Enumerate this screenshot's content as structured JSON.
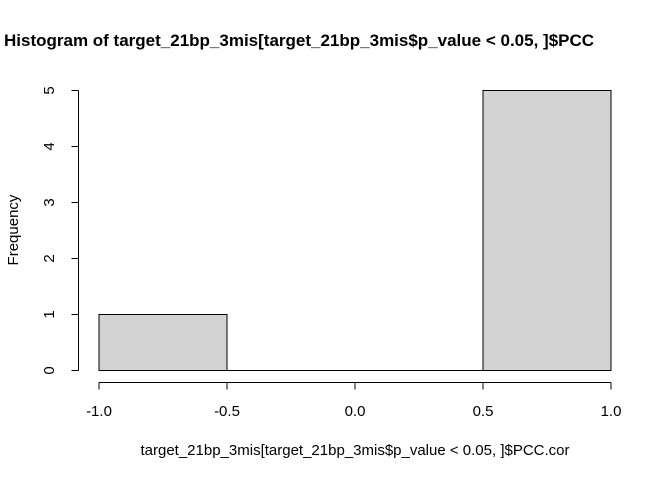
{
  "chart_data": {
    "type": "bar",
    "subtype": "histogram",
    "title": "Histogram of target_21bp_3mis[target_21bp_3mis$p_value < 0.05, ]$PCC",
    "xlabel": "target_21bp_3mis[target_21bp_3mis$p_value < 0.05, ]$PCC.cor",
    "ylabel": "Frequency",
    "bins": [
      {
        "from": -1.0,
        "to": -0.5,
        "count": 1
      },
      {
        "from": -0.5,
        "to": 0.0,
        "count": 0
      },
      {
        "from": 0.0,
        "to": 0.5,
        "count": 0
      },
      {
        "from": 0.5,
        "to": 1.0,
        "count": 5
      }
    ],
    "xlim": [
      -1.0,
      1.0
    ],
    "ylim": [
      0,
      5
    ],
    "x_ticks": [
      "-1.0",
      "-0.5",
      "0.0",
      "0.5",
      "1.0"
    ],
    "x_tick_values": [
      -1.0,
      -0.5,
      0.0,
      0.5,
      1.0
    ],
    "y_ticks": [
      "0",
      "1",
      "2",
      "3",
      "4",
      "5"
    ],
    "y_tick_values": [
      0,
      1,
      2,
      3,
      4,
      5
    ],
    "bar_fill": "#d3d3d3",
    "bar_stroke": "#000000",
    "grid": false,
    "legend": "none"
  }
}
